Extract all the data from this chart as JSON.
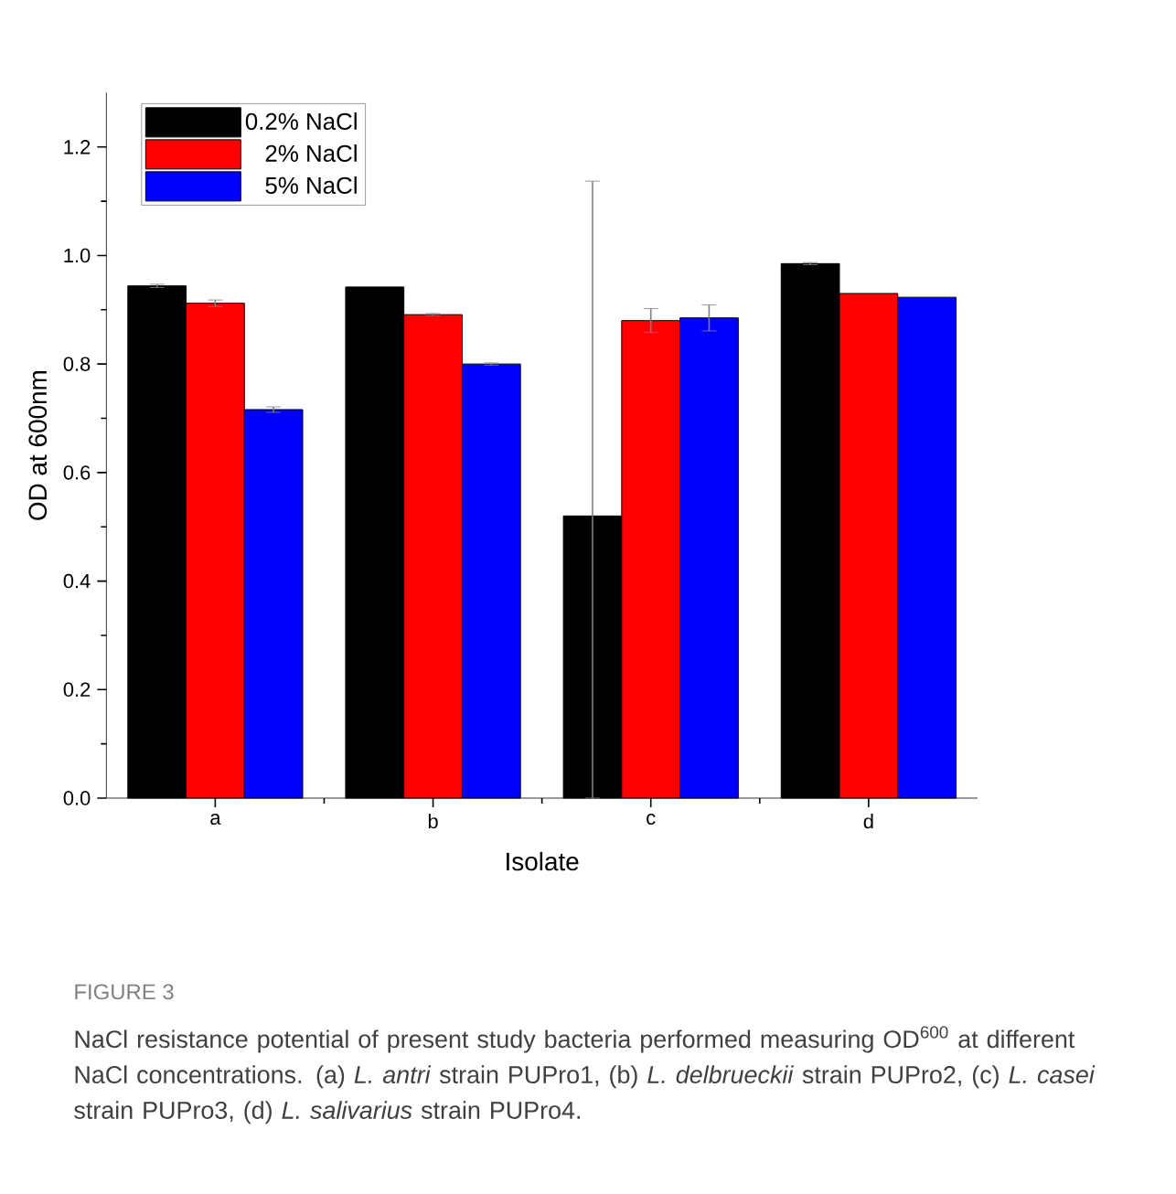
{
  "chart_data": {
    "type": "bar",
    "xlabel": "Isolate",
    "ylabel": "OD at 600nm",
    "categories": [
      "a",
      "b",
      "c",
      "d"
    ],
    "series": [
      {
        "name": "0.2% NaCl",
        "color": "#000000",
        "values": [
          0.944,
          0.942,
          0.52,
          0.985
        ],
        "errors": [
          0.003,
          null,
          [
            0,
            1.137
          ],
          0.002
        ]
      },
      {
        "name": "2% NaCl",
        "color": "#ff0000",
        "values": [
          0.912,
          0.891,
          0.88,
          0.93
        ],
        "errors": [
          0.006,
          0.002,
          0.022,
          null
        ]
      },
      {
        "name": "5% NaCl",
        "color": "#0000ff",
        "values": [
          0.716,
          0.8,
          0.885,
          0.923
        ],
        "errors": [
          0.005,
          0.002,
          0.024,
          null
        ]
      }
    ],
    "ylim": [
      0,
      1.3
    ],
    "yticks": [
      {
        "value": 0,
        "label": "0.0"
      },
      0.2,
      0.4,
      0.6,
      0.8,
      {
        "value": 1,
        "label": "1.0"
      },
      1.2
    ],
    "legend": "top left",
    "annotations": [
      "FIGURE 3",
      "NaCl resistance potential of present study bacteria performed measuring OD$^{600}$ at different NaCl concentrations. (a) *L. antri* strain PUPro1, (b) *L. delbrueckii* strain PUPro2, (c) *L. casei* strain PUPro3, (d) *L. salivarius* strain PUPro4."
    ]
  }
}
